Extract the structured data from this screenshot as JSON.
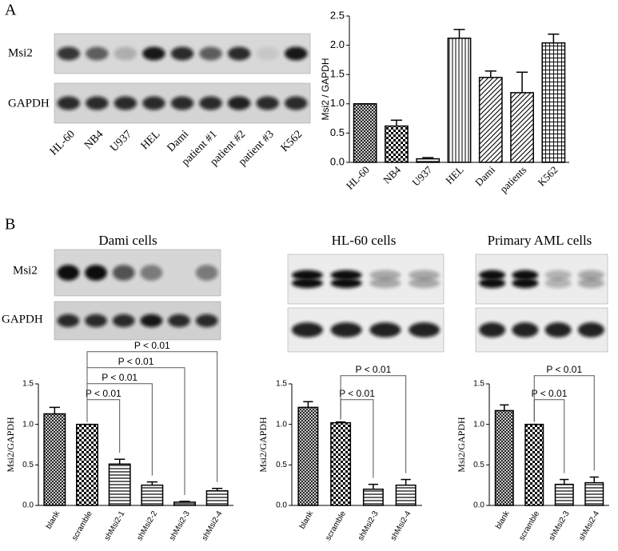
{
  "panels": [
    "A",
    "B"
  ],
  "blots": {
    "panel_a": {
      "rows": [
        "Msi2",
        "GAPDH"
      ],
      "lanes": [
        "HL-60",
        "NB4",
        "U937",
        "HEL",
        "Dami",
        "patient #1",
        "patient #2",
        "patient #3",
        "K562"
      ]
    },
    "panel_b": {
      "rows": [
        "Msi2",
        "GAPDH"
      ]
    }
  },
  "chart_data": [
    {
      "type": "bar",
      "ylabel": "Msi2 / GAPDH",
      "categories": [
        "HL-60",
        "NB4",
        "U937",
        "HEL",
        "Dami",
        "patients",
        "K562"
      ],
      "values": [
        1.0,
        0.62,
        0.06,
        2.12,
        1.45,
        1.19,
        2.04
      ],
      "errors": [
        0,
        0.1,
        0.02,
        0.15,
        0.11,
        0.35,
        0.15
      ],
      "patterns": [
        "crosshatch",
        "checker",
        "hlines",
        "vlines",
        "diag",
        "diag",
        "grid"
      ],
      "color": "#000000",
      "ylim": [
        0,
        2.5
      ],
      "yticks": [
        {
          "value": 0,
          "label": "0.0"
        },
        {
          "value": 0.5,
          "label": "0.5"
        },
        {
          "value": 1,
          "label": "1.0"
        },
        {
          "value": 1.5,
          "label": "1.5"
        },
        {
          "value": 2,
          "label": "2.0"
        },
        {
          "value": 2.5,
          "label": "2.5"
        }
      ]
    },
    {
      "type": "bar",
      "title": "Dami cells",
      "ylabel": "Msi2/GAPDH",
      "categories": [
        "blank",
        "scramble",
        "shMsi2-1",
        "shMsi2-2",
        "shMsi2-3",
        "shMsi2-4"
      ],
      "values": [
        1.13,
        1.0,
        0.51,
        0.25,
        0.04,
        0.18
      ],
      "errors": [
        0.08,
        0,
        0.06,
        0.04,
        0.01,
        0.03
      ],
      "patterns": [
        "crosshatch",
        "checker",
        "hlines",
        "hlines",
        "hlines",
        "hlines"
      ],
      "color": "#000000",
      "ylim": [
        0,
        1.5
      ],
      "yticks": [
        {
          "value": 0,
          "label": "0.0"
        },
        {
          "value": 0.5,
          "label": "0.5"
        },
        {
          "value": 1,
          "label": "1.0"
        },
        {
          "value": 1.5,
          "label": "1.5"
        }
      ],
      "annotations": [
        "P < 0.01",
        "P < 0.01",
        "P < 0.01",
        "P < 0.01"
      ]
    },
    {
      "type": "bar",
      "title": "HL-60 cells",
      "ylabel": "Msi2/GAPDH",
      "categories": [
        "blank",
        "scramble",
        "shMsi2-3",
        "shMsi2-4"
      ],
      "values": [
        1.21,
        1.02,
        0.2,
        0.25
      ],
      "errors": [
        0.07,
        0.01,
        0.06,
        0.07
      ],
      "patterns": [
        "crosshatch",
        "checker",
        "hlines",
        "hlines"
      ],
      "color": "#000000",
      "ylim": [
        0,
        1.5
      ],
      "yticks": [
        {
          "value": 0,
          "label": "0.0"
        },
        {
          "value": 0.5,
          "label": "0.5"
        },
        {
          "value": 1,
          "label": "1.0"
        },
        {
          "value": 1.5,
          "label": "1.5"
        }
      ],
      "annotations": [
        "P < 0.01",
        "P < 0.01"
      ]
    },
    {
      "type": "bar",
      "title": "Primary AML cells",
      "ylabel": "Msi2/GAPDH",
      "categories": [
        "blank",
        "scramble",
        "shMsi2-3",
        "shMsi2-4"
      ],
      "values": [
        1.17,
        1.0,
        0.26,
        0.28
      ],
      "errors": [
        0.07,
        0,
        0.06,
        0.07
      ],
      "patterns": [
        "crosshatch",
        "checker",
        "hlines",
        "hlines"
      ],
      "color": "#000000",
      "ylim": [
        0,
        1.5
      ],
      "yticks": [
        {
          "value": 0,
          "label": "0.0"
        },
        {
          "value": 0.5,
          "label": "0.5"
        },
        {
          "value": 1,
          "label": "1.0"
        },
        {
          "value": 1.5,
          "label": "1.5"
        }
      ],
      "annotations": [
        "P < 0.01",
        "P < 0.01"
      ]
    }
  ]
}
